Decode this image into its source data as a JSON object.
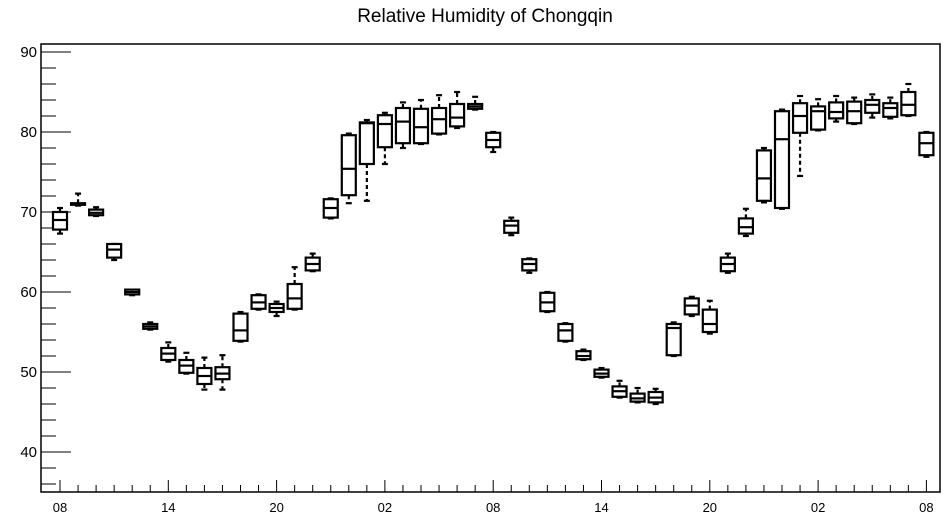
{
  "chart_data": {
    "type": "box",
    "title": "Relative Humidity of Chongqin",
    "xlabel": "",
    "ylabel": "",
    "ylim": [
      35,
      91
    ],
    "y_ticks": [
      40,
      50,
      60,
      70,
      80,
      90
    ],
    "x_tick_labels": [
      "08",
      "14",
      "20",
      "02",
      "08",
      "14",
      "20",
      "02",
      "08"
    ],
    "grid": false,
    "boxes": [
      {
        "x": 0,
        "min": 67.3,
        "q1": 67.8,
        "median": 69.0,
        "q3": 70.0,
        "max": 70.5
      },
      {
        "x": 1,
        "min": 70.8,
        "q1": 70.9,
        "median": 71.0,
        "q3": 71.1,
        "max": 72.3
      },
      {
        "x": 2,
        "min": 69.5,
        "q1": 69.6,
        "median": 69.9,
        "q3": 70.3,
        "max": 70.6
      },
      {
        "x": 3,
        "min": 64.0,
        "q1": 64.3,
        "median": 65.3,
        "q3": 66.0,
        "max": 66.0
      },
      {
        "x": 4,
        "min": 59.6,
        "q1": 59.7,
        "median": 60.0,
        "q3": 60.3,
        "max": 60.3
      },
      {
        "x": 5,
        "min": 55.3,
        "q1": 55.4,
        "median": 55.7,
        "q3": 56.0,
        "max": 56.2
      },
      {
        "x": 6,
        "min": 51.3,
        "q1": 51.5,
        "median": 52.3,
        "q3": 53.0,
        "max": 53.7
      },
      {
        "x": 7,
        "min": 49.8,
        "q1": 49.9,
        "median": 50.8,
        "q3": 51.5,
        "max": 52.4
      },
      {
        "x": 8,
        "min": 47.8,
        "q1": 48.5,
        "median": 49.5,
        "q3": 50.5,
        "max": 51.8
      },
      {
        "x": 9,
        "min": 47.8,
        "q1": 49.1,
        "median": 49.8,
        "q3": 50.6,
        "max": 52.1
      },
      {
        "x": 10,
        "min": 53.8,
        "q1": 53.9,
        "median": 55.2,
        "q3": 57.3,
        "max": 57.5
      },
      {
        "x": 11,
        "min": 57.8,
        "q1": 57.9,
        "median": 58.7,
        "q3": 59.6,
        "max": 59.7
      },
      {
        "x": 12,
        "min": 57.0,
        "q1": 57.5,
        "median": 58.0,
        "q3": 58.5,
        "max": 58.8
      },
      {
        "x": 13,
        "min": 57.8,
        "q1": 57.9,
        "median": 59.2,
        "q3": 61.0,
        "max": 63.1
      },
      {
        "x": 14,
        "min": 62.6,
        "q1": 62.7,
        "median": 63.5,
        "q3": 64.3,
        "max": 64.8
      },
      {
        "x": 15,
        "min": 69.2,
        "q1": 69.3,
        "median": 70.5,
        "q3": 71.6,
        "max": 71.7
      },
      {
        "x": 16,
        "min": 71.1,
        "q1": 72.1,
        "median": 75.4,
        "q3": 79.6,
        "max": 79.8
      },
      {
        "x": 17,
        "min": 71.4,
        "q1": 76.0,
        "median": 81.1,
        "q3": 81.2,
        "max": 81.5
      },
      {
        "x": 18,
        "min": 76.0,
        "q1": 78.1,
        "median": 81.0,
        "q3": 82.1,
        "max": 82.4
      },
      {
        "x": 19,
        "min": 78.0,
        "q1": 78.6,
        "median": 81.3,
        "q3": 83.0,
        "max": 83.7
      },
      {
        "x": 20,
        "min": 78.5,
        "q1": 78.6,
        "median": 80.6,
        "q3": 82.9,
        "max": 84.0
      },
      {
        "x": 21,
        "min": 79.7,
        "q1": 79.8,
        "median": 81.6,
        "q3": 83.0,
        "max": 84.6
      },
      {
        "x": 22,
        "min": 80.5,
        "q1": 80.7,
        "median": 81.8,
        "q3": 83.5,
        "max": 85.0
      },
      {
        "x": 23,
        "min": 82.8,
        "q1": 82.9,
        "median": 83.2,
        "q3": 83.5,
        "max": 84.4
      },
      {
        "x": 24,
        "min": 77.5,
        "q1": 78.1,
        "median": 79.0,
        "q3": 79.9,
        "max": 80.0
      },
      {
        "x": 25,
        "min": 67.1,
        "q1": 67.4,
        "median": 68.3,
        "q3": 68.9,
        "max": 69.3
      },
      {
        "x": 26,
        "min": 62.4,
        "q1": 62.7,
        "median": 63.5,
        "q3": 64.1,
        "max": 64.2
      },
      {
        "x": 27,
        "min": 57.5,
        "q1": 57.6,
        "median": 58.7,
        "q3": 59.9,
        "max": 60.0
      },
      {
        "x": 28,
        "min": 53.8,
        "q1": 53.9,
        "median": 55.2,
        "q3": 56.0,
        "max": 56.1
      },
      {
        "x": 29,
        "min": 51.5,
        "q1": 51.6,
        "median": 52.0,
        "q3": 52.6,
        "max": 52.8
      },
      {
        "x": 30,
        "min": 49.3,
        "q1": 49.4,
        "median": 49.8,
        "q3": 50.3,
        "max": 50.5
      },
      {
        "x": 31,
        "min": 46.8,
        "q1": 46.9,
        "median": 47.6,
        "q3": 48.2,
        "max": 48.9
      },
      {
        "x": 32,
        "min": 46.2,
        "q1": 46.3,
        "median": 46.7,
        "q3": 47.3,
        "max": 48.0
      },
      {
        "x": 33,
        "min": 46.0,
        "q1": 46.2,
        "median": 46.8,
        "q3": 47.5,
        "max": 47.9
      },
      {
        "x": 34,
        "min": 52.0,
        "q1": 52.1,
        "median": 55.5,
        "q3": 56.0,
        "max": 56.2
      },
      {
        "x": 35,
        "min": 57.0,
        "q1": 57.2,
        "median": 58.3,
        "q3": 59.2,
        "max": 59.4
      },
      {
        "x": 36,
        "min": 54.8,
        "q1": 55.0,
        "median": 56.0,
        "q3": 57.8,
        "max": 58.9
      },
      {
        "x": 37,
        "min": 62.4,
        "q1": 62.6,
        "median": 63.5,
        "q3": 64.3,
        "max": 64.8
      },
      {
        "x": 38,
        "min": 67.0,
        "q1": 67.3,
        "median": 68.1,
        "q3": 69.2,
        "max": 70.4
      },
      {
        "x": 39,
        "min": 71.2,
        "q1": 71.4,
        "median": 74.2,
        "q3": 77.7,
        "max": 78.0
      },
      {
        "x": 40,
        "min": 70.4,
        "q1": 70.5,
        "median": 79.1,
        "q3": 82.6,
        "max": 82.8
      },
      {
        "x": 41,
        "min": 74.5,
        "q1": 79.9,
        "median": 82.0,
        "q3": 83.6,
        "max": 84.5
      },
      {
        "x": 42,
        "min": 80.2,
        "q1": 80.3,
        "median": 82.6,
        "q3": 83.2,
        "max": 84.1
      },
      {
        "x": 43,
        "min": 81.3,
        "q1": 81.7,
        "median": 82.5,
        "q3": 83.7,
        "max": 84.5
      },
      {
        "x": 44,
        "min": 81.0,
        "q1": 81.1,
        "median": 82.6,
        "q3": 83.8,
        "max": 84.3
      },
      {
        "x": 45,
        "min": 81.8,
        "q1": 82.4,
        "median": 83.4,
        "q3": 84.0,
        "max": 84.7
      },
      {
        "x": 46,
        "min": 81.7,
        "q1": 81.9,
        "median": 83.0,
        "q3": 83.6,
        "max": 84.3
      },
      {
        "x": 47,
        "min": 82.0,
        "q1": 82.1,
        "median": 83.4,
        "q3": 85.0,
        "max": 86.0
      },
      {
        "x": 48,
        "min": 76.9,
        "q1": 77.1,
        "median": 78.6,
        "q3": 79.9,
        "max": 80.0
      }
    ]
  }
}
